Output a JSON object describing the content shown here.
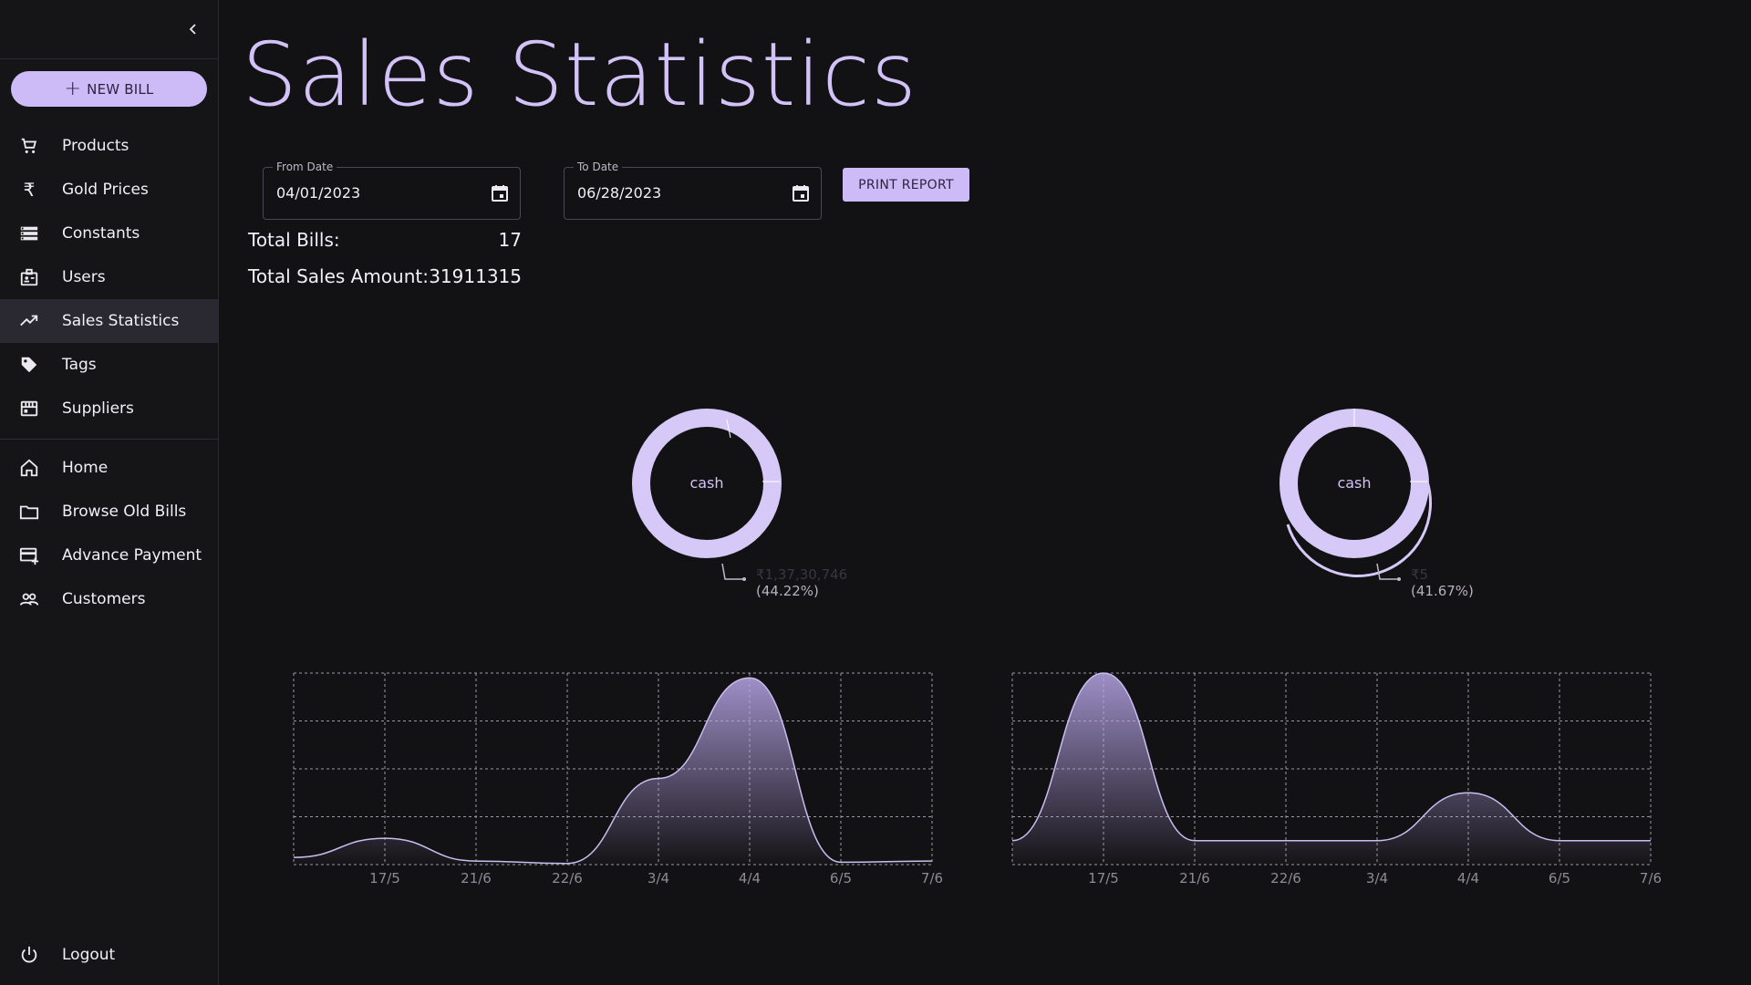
{
  "sidebar": {
    "new_bill_label": "NEW BILL",
    "items": [
      {
        "label": "Products",
        "icon": "cart-icon"
      },
      {
        "label": "Gold Prices",
        "icon": "rupee-icon"
      },
      {
        "label": "Constants",
        "icon": "list-icon"
      },
      {
        "label": "Users",
        "icon": "badge-icon"
      },
      {
        "label": "Sales Statistics",
        "icon": "trending-up-icon"
      },
      {
        "label": "Tags",
        "icon": "tag-icon"
      },
      {
        "label": "Suppliers",
        "icon": "store-icon"
      }
    ],
    "items2": [
      {
        "label": "Home",
        "icon": "home-icon"
      },
      {
        "label": "Browse Old Bills",
        "icon": "folder-icon"
      },
      {
        "label": "Advance Payment",
        "icon": "card-plus-icon"
      },
      {
        "label": "Customers",
        "icon": "people-icon"
      }
    ],
    "logout_label": "Logout"
  },
  "main": {
    "title": "Sales Statistics",
    "from_date": {
      "label": "From Date",
      "value": "04/01/2023"
    },
    "to_date": {
      "label": "To Date",
      "value": "06/28/2023"
    },
    "print_label": "PRINT REPORT",
    "total_bills_label": "Total Bills:",
    "total_bills_value": "17",
    "total_sales_label": "Total Sales Amount:",
    "total_sales_value": "31911315"
  },
  "colors": {
    "accent": "#cdbbf7",
    "background": "#121113"
  },
  "chart_data": [
    {
      "type": "pie",
      "center_label": "cash",
      "slices": [
        {
          "name": "cash",
          "label": "₹1,37,30,746",
          "percent": "(44.22%)"
        }
      ]
    },
    {
      "type": "pie",
      "center_label": "cash",
      "slices": [
        {
          "name": "cash",
          "label": "₹5",
          "percent": "(41.67%)"
        }
      ]
    },
    {
      "type": "area",
      "categories": [
        "",
        "17/5",
        "21/6",
        "22/6",
        "3/4",
        "4/4",
        "6/5",
        "7/6"
      ],
      "values": [
        0.3,
        1.1,
        0.15,
        0.05,
        3.6,
        7.8,
        0.1,
        0.15
      ],
      "ylim": [
        0,
        8
      ]
    },
    {
      "type": "area",
      "categories": [
        "",
        "17/5",
        "21/6",
        "22/6",
        "3/4",
        "4/4",
        "6/5",
        "7/6"
      ],
      "values": [
        1,
        8,
        1,
        1,
        1,
        3,
        1,
        1
      ],
      "ylim": [
        0,
        8
      ]
    }
  ]
}
